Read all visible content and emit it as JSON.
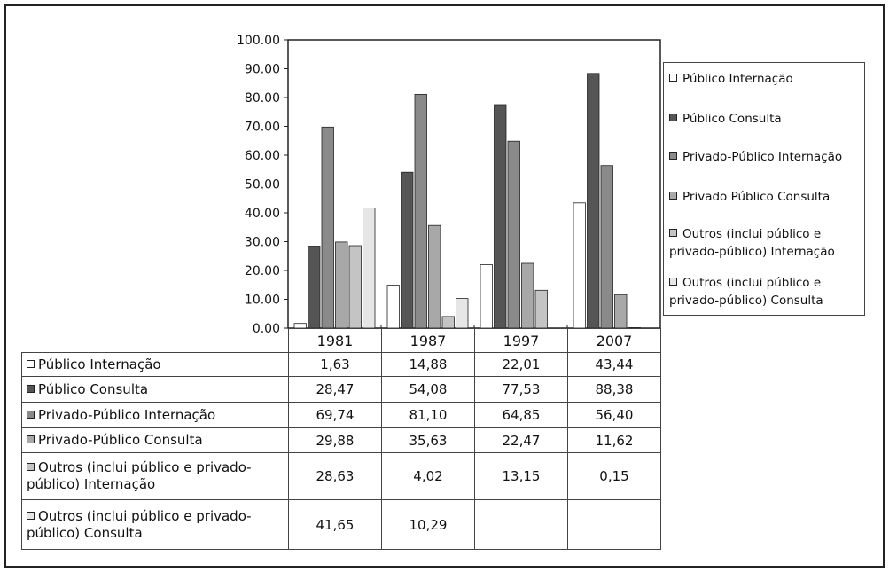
{
  "colors": {
    "series": [
      "#ffffff",
      "#555555",
      "#8a8a8a",
      "#a8a8a8",
      "#c4c4c4",
      "#e6e6e6"
    ],
    "axis": "#222222",
    "border": "#333333"
  },
  "chart_data": {
    "type": "bar",
    "title": "",
    "xlabel": "",
    "ylabel": "",
    "ylim": [
      0,
      100
    ],
    "y_ticks": [
      "0.00",
      "10.00",
      "20.00",
      "30.00",
      "40.00",
      "50.00",
      "60.00",
      "70.00",
      "80.00",
      "90.00",
      "100.00"
    ],
    "grid": false,
    "legend_position": "right",
    "categories": [
      "1981",
      "1987",
      "1997",
      "2007"
    ],
    "series": [
      {
        "name": "Público  Internação",
        "table_label": "Público  Internação",
        "values": [
          1.63,
          14.88,
          22.01,
          43.44
        ],
        "display": [
          "1,63",
          "14,88",
          "22,01",
          "43,44"
        ]
      },
      {
        "name": "Público  Consulta",
        "table_label": "Público Consulta",
        "values": [
          28.47,
          54.08,
          77.53,
          88.38
        ],
        "display": [
          "28,47",
          "54,08",
          "77,53",
          "88,38"
        ]
      },
      {
        "name": "Privado-Público Internação",
        "table_label": "Privado-Público Internação",
        "values": [
          69.74,
          81.1,
          64.85,
          56.4
        ],
        "display": [
          "69,74",
          "81,10",
          "64,85",
          "56,40"
        ]
      },
      {
        "name": "Privado Público Consulta",
        "table_label": "Privado-Público Consulta",
        "values": [
          29.88,
          35.63,
          22.47,
          11.62
        ],
        "display": [
          "29,88",
          "35,63",
          "22,47",
          "11,62"
        ]
      },
      {
        "name": "Outros (inclui público e privado-público) Internação",
        "table_label": "Outros (inclui público e privado-público) Internação",
        "values": [
          28.63,
          4.02,
          13.15,
          0.15
        ],
        "display": [
          "28,63",
          "4,02",
          "13,15",
          "0,15"
        ]
      },
      {
        "name": "Outros (inclui público e privado-público) Consulta",
        "table_label": "Outros (inclui público e privado-público) Consulta",
        "values": [
          41.65,
          10.29,
          null,
          null
        ],
        "display": [
          "41,65",
          "10,29",
          "",
          ""
        ]
      }
    ]
  }
}
